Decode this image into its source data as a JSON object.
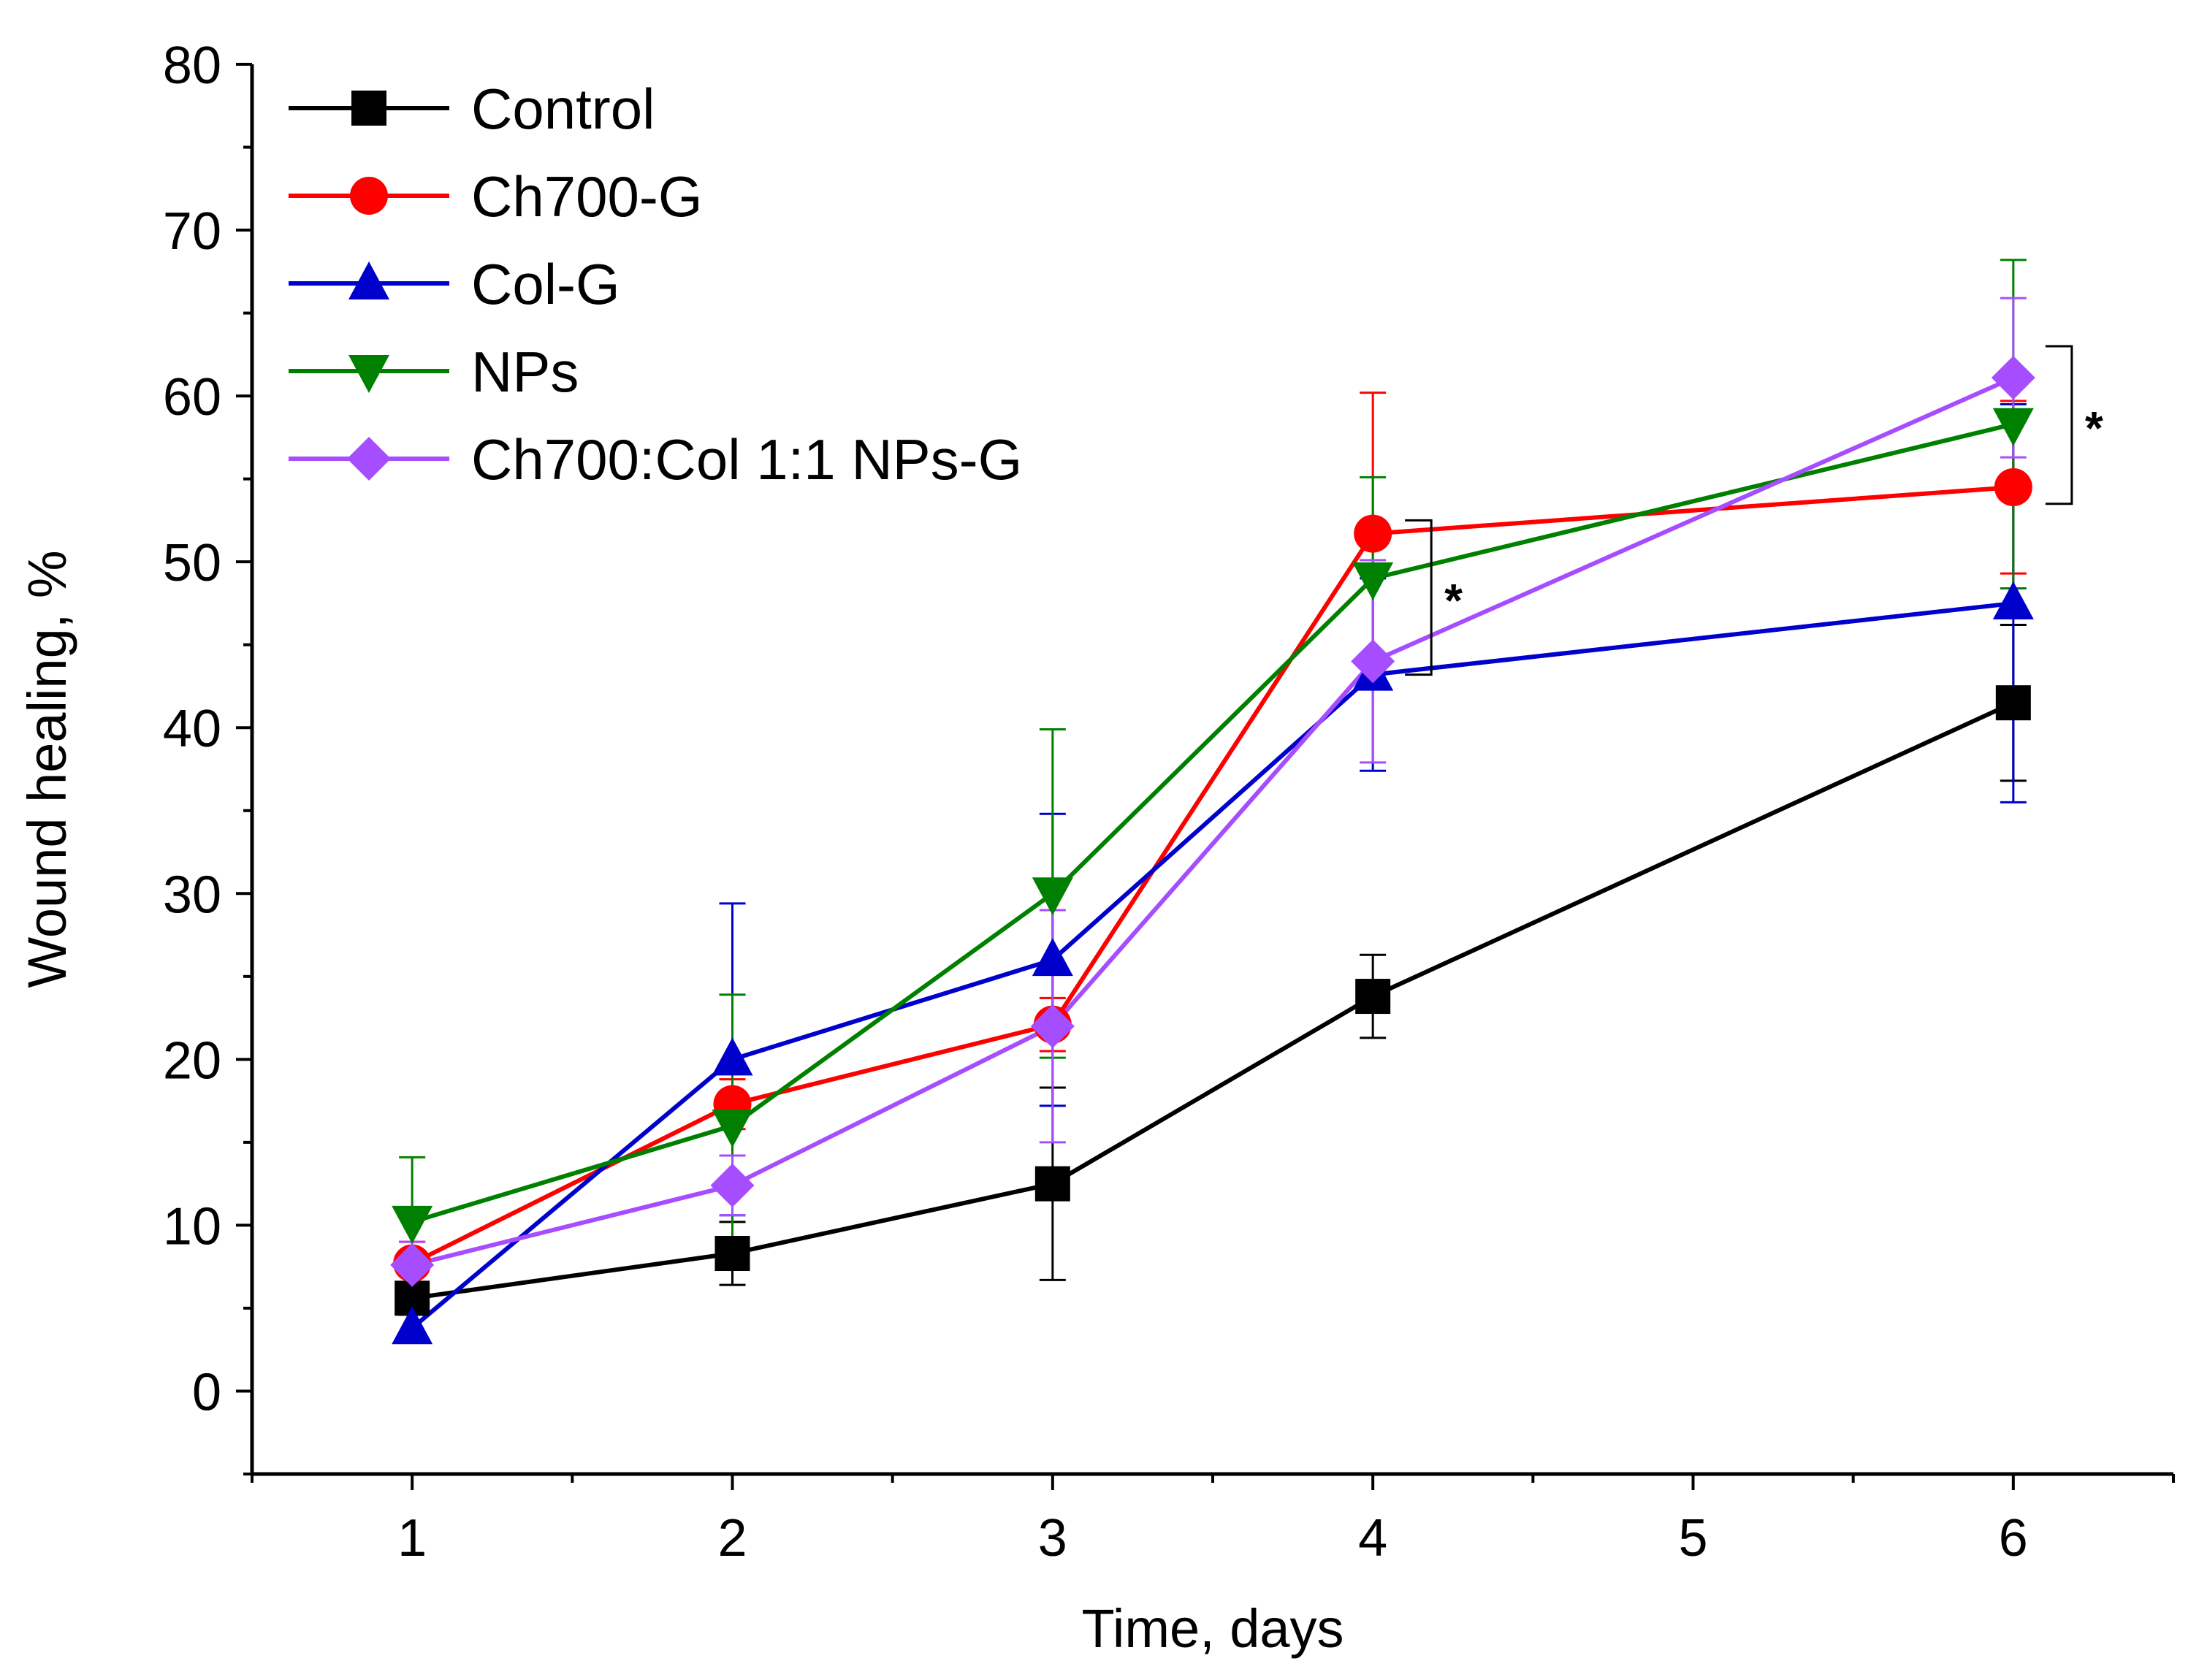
{
  "chart_data": {
    "type": "line",
    "title": "",
    "xlabel": "Time, days",
    "ylabel": "Wound healing, %",
    "xlim": [
      0.5,
      6.5
    ],
    "ylim": [
      -5,
      80
    ],
    "xticks": [
      1,
      2,
      3,
      4,
      5,
      6
    ],
    "yticks": [
      0,
      10,
      20,
      30,
      40,
      50,
      60,
      70,
      80
    ],
    "grid": false,
    "legend_position": "top-left",
    "series": [
      {
        "name": "Control",
        "color": "#000000",
        "marker": "square",
        "x": [
          1,
          2,
          3,
          4,
          6
        ],
        "values": [
          5.6,
          8.3,
          12.5,
          23.8,
          41.5
        ],
        "error": [
          0.8,
          1.9,
          5.8,
          2.5,
          4.7
        ]
      },
      {
        "name": "Ch700-G",
        "color": "#ff0000",
        "marker": "circle",
        "x": [
          1,
          2,
          3,
          4,
          6
        ],
        "values": [
          7.7,
          17.3,
          22.1,
          51.7,
          54.5
        ],
        "error": [
          1.3,
          1.5,
          1.6,
          8.5,
          5.2
        ]
      },
      {
        "name": "Col-G",
        "color": "#0000cc",
        "marker": "triangle-up",
        "x": [
          1,
          2,
          3,
          4,
          6
        ],
        "values": [
          3.8,
          20.0,
          26.0,
          43.2,
          47.5
        ],
        "error": [
          0.8,
          9.4,
          8.8,
          5.8,
          12.0
        ]
      },
      {
        "name": "NPs",
        "color": "#008000",
        "marker": "triangle-down",
        "x": [
          1,
          2,
          3,
          4,
          6
        ],
        "values": [
          10.2,
          16.0,
          30.0,
          49.0,
          58.3
        ],
        "error": [
          3.9,
          7.9,
          9.9,
          6.1,
          9.9
        ]
      },
      {
        "name": "Ch700:Col 1:1 NPs-G",
        "color": "#a64dff",
        "marker": "diamond",
        "x": [
          1,
          2,
          3,
          4,
          6
        ],
        "values": [
          7.6,
          12.4,
          22.0,
          44.0,
          61.1
        ],
        "error": [
          1.4,
          1.8,
          7.0,
          6.1,
          4.8
        ]
      }
    ],
    "annotations": [
      {
        "text": "*",
        "x": 4,
        "bracket_y": [
          43.2,
          52.5
        ]
      },
      {
        "text": "*",
        "x": 6,
        "bracket_y": [
          53.5,
          63.0
        ]
      }
    ]
  }
}
